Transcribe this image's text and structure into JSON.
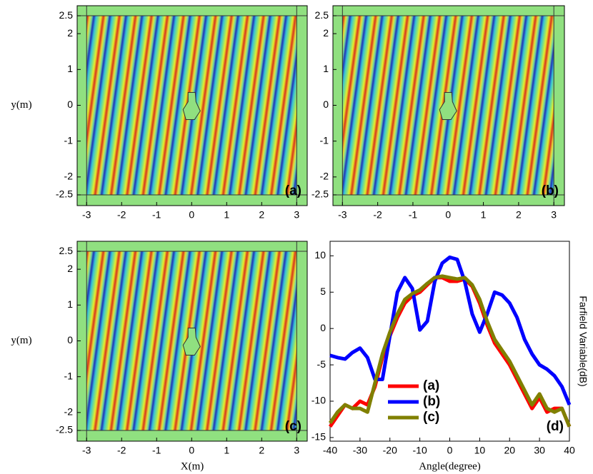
{
  "chart_data": [
    {
      "type": "field",
      "label": "(a)",
      "ylabel": "y(m)",
      "xlim": [
        -3.27,
        3.3
      ],
      "ylim": [
        -2.8,
        2.78
      ],
      "xticks": [
        -3,
        -2,
        -1,
        0,
        1,
        2,
        3
      ],
      "yticks": [
        -2.5,
        -2,
        -1,
        0,
        1,
        2,
        2.5
      ]
    },
    {
      "type": "field",
      "label": "(b)",
      "xlim": [
        -3.27,
        3.3
      ],
      "ylim": [
        -2.8,
        2.78
      ],
      "xticks": [
        -3,
        -2,
        -1,
        0,
        1,
        2,
        3
      ],
      "yticks": [
        -2.5,
        -2,
        -1,
        0,
        1,
        2,
        2.5
      ]
    },
    {
      "type": "field",
      "label": "(c)",
      "ylabel": "y(m)",
      "xlabel": "X(m)",
      "xlim": [
        -3.27,
        3.3
      ],
      "ylim": [
        -2.8,
        2.78
      ],
      "xticks": [
        -3,
        -2,
        -1,
        0,
        1,
        2,
        3
      ],
      "yticks": [
        -2.5,
        -2,
        -1,
        0,
        1,
        2,
        2.5
      ]
    },
    {
      "type": "line",
      "label": "(d)",
      "xlabel": "Angle(degree)",
      "ylabel": "Farfield Variable(dB)",
      "xlim": [
        -40,
        40
      ],
      "ylim": [
        -15.5,
        12
      ],
      "xticks": [
        -40,
        -30,
        -20,
        -10,
        0,
        10,
        20,
        30,
        40
      ],
      "yticks": [
        -15,
        -10,
        -5,
        0,
        5,
        10
      ],
      "x": [
        -40,
        -37.5,
        -35,
        -32.5,
        -30,
        -27.5,
        -25,
        -22.5,
        -20,
        -17.5,
        -15,
        -12.5,
        -10,
        -7.5,
        -5,
        -2.5,
        0,
        2.5,
        5,
        7.5,
        10,
        12.5,
        15,
        17.5,
        20,
        22.5,
        25,
        27.5,
        30,
        32.5,
        35,
        37.5,
        40
      ],
      "series": [
        {
          "name": "(a)",
          "color": "#ff0000",
          "values": [
            -13.5,
            -12,
            -10.5,
            -11,
            -10,
            -10.5,
            -8,
            -4,
            -1,
            1.5,
            3.5,
            4.5,
            5,
            6,
            7,
            7,
            6.5,
            6.5,
            6.8,
            5.8,
            3.5,
            0.5,
            -2,
            -3.5,
            -5,
            -7,
            -9,
            -11,
            -9.5,
            -11.5,
            -11,
            -11,
            -13.5
          ]
        },
        {
          "name": "(b)",
          "color": "#0000ff",
          "values": [
            -3.7,
            -4,
            -4.2,
            -3.3,
            -2.7,
            -4,
            -7,
            -7,
            -1,
            5,
            7,
            5.5,
            -0.2,
            1,
            6.5,
            9,
            9.8,
            9.5,
            6.5,
            2,
            -0.5,
            2,
            5,
            4.6,
            3.5,
            1.5,
            -1.5,
            -3.5,
            -5,
            -5.6,
            -6.5,
            -8,
            -10.5
          ]
        },
        {
          "name": "(c)",
          "color": "#808000",
          "values": [
            -13,
            -11.5,
            -10.5,
            -11,
            -11,
            -11.5,
            -7.5,
            -3.5,
            -0.5,
            2,
            4,
            4.8,
            5.3,
            6.2,
            7,
            7.2,
            7,
            6.8,
            7,
            6,
            4,
            1,
            -1.5,
            -3,
            -4.5,
            -6.5,
            -8.5,
            -10.5,
            -9,
            -11,
            -11.5,
            -11,
            -13.5
          ]
        }
      ]
    }
  ]
}
